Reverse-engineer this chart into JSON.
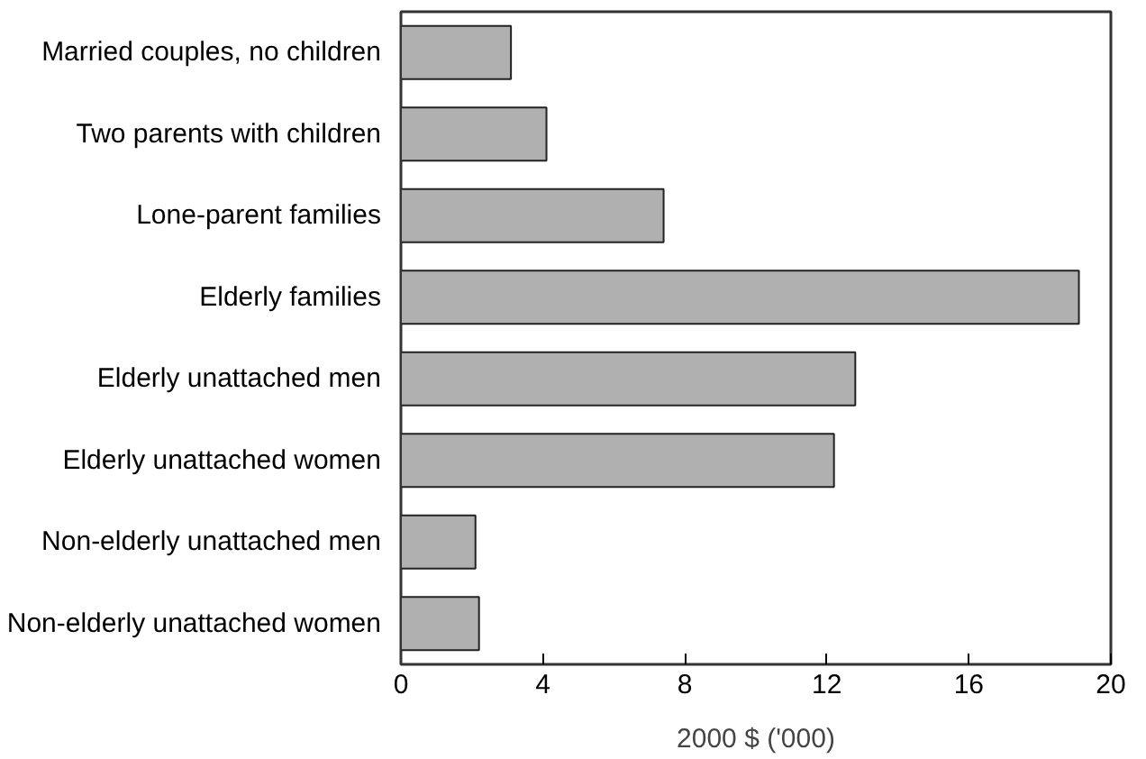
{
  "chart_data": {
    "type": "bar",
    "orientation": "horizontal",
    "xlabel": "2000 $ ('000)",
    "categories": [
      "Married couples, no children",
      "Two parents with children",
      "Lone-parent families",
      "Elderly families",
      "Elderly unattached men",
      "Elderly unattached women",
      "Non-elderly unattached men",
      "Non-elderly unattached women"
    ],
    "values": [
      3.1,
      4.1,
      7.4,
      19.1,
      12.8,
      12.2,
      2.1,
      2.2
    ],
    "color": "#b0b0b0",
    "xlim": [
      0,
      20
    ],
    "xticks": [
      0,
      4,
      8,
      12,
      16,
      20
    ],
    "grid": false
  }
}
